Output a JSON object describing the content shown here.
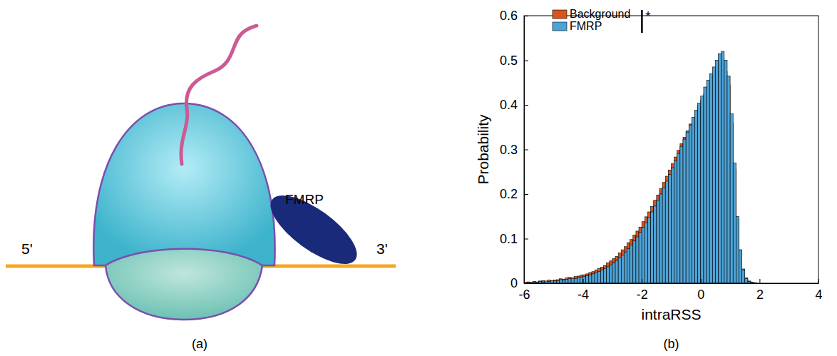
{
  "panels": [
    "(a)",
    "(b)"
  ],
  "diagram": {
    "five_prime": "5'",
    "three_prime": "3'",
    "protein": "FMRP"
  },
  "chart_data": {
    "type": "histogram",
    "x_label": "intraRSS",
    "y_label": "Probability",
    "xlim": [
      -6,
      4
    ],
    "xticks": [
      -6,
      -4,
      -2,
      0,
      2,
      4
    ],
    "ylim": [
      0,
      0.6
    ],
    "yticks": [
      0,
      0.1,
      0.2,
      0.3,
      0.4,
      0.5,
      0.6
    ],
    "legend": "north-west",
    "significance": "*",
    "bins": [
      -6.0,
      -5.9,
      -5.8,
      -5.7,
      -5.6,
      -5.5,
      -5.4,
      -5.3,
      -5.2,
      -5.1,
      -5.0,
      -4.9,
      -4.8,
      -4.7,
      -4.6,
      -4.5,
      -4.4,
      -4.3,
      -4.2,
      -4.1,
      -4.0,
      -3.9,
      -3.8,
      -3.7,
      -3.6,
      -3.5,
      -3.4,
      -3.3,
      -3.2,
      -3.1,
      -3.0,
      -2.9,
      -2.8,
      -2.7,
      -2.6,
      -2.5,
      -2.4,
      -2.3,
      -2.2,
      -2.1,
      -2.0,
      -1.9,
      -1.8,
      -1.7,
      -1.6,
      -1.5,
      -1.4,
      -1.3,
      -1.2,
      -1.1,
      -1.0,
      -0.9,
      -0.8,
      -0.7,
      -0.6,
      -0.5,
      -0.4,
      -0.3,
      -0.2,
      -0.1,
      0.0,
      0.1,
      0.2,
      0.3,
      0.4,
      0.5,
      0.6,
      0.7,
      0.8,
      0.9,
      1.0,
      1.1,
      1.2,
      1.3,
      1.4,
      1.5,
      1.6,
      1.7,
      1.8,
      1.9,
      2.0
    ],
    "series": [
      {
        "name": "Background",
        "color": "#d9531e",
        "values": [
          0.002,
          0.003,
          0.002,
          0.004,
          0.003,
          0.005,
          0.006,
          0.004,
          0.007,
          0.006,
          0.007,
          0.008,
          0.01,
          0.009,
          0.012,
          0.013,
          0.012,
          0.015,
          0.016,
          0.018,
          0.019,
          0.021,
          0.024,
          0.026,
          0.03,
          0.033,
          0.036,
          0.04,
          0.046,
          0.05,
          0.055,
          0.06,
          0.068,
          0.075,
          0.082,
          0.091,
          0.098,
          0.108,
          0.117,
          0.126,
          0.138,
          0.149,
          0.16,
          0.172,
          0.186,
          0.198,
          0.212,
          0.226,
          0.24,
          0.254,
          0.268,
          0.283,
          0.298,
          0.313,
          0.327,
          0.342,
          0.357,
          0.371,
          0.385,
          0.398,
          0.41,
          0.425,
          0.44,
          0.452,
          0.465,
          0.478,
          0.488,
          0.49,
          0.475,
          0.445,
          0.36,
          0.255,
          0.145,
          0.075,
          0.032,
          0.012,
          0.005,
          0.002,
          0.001,
          0
        ]
      },
      {
        "name": "FMRP",
        "color": "#4ea3d6",
        "values": [
          0,
          0.002,
          0,
          0.003,
          0.002,
          0.004,
          0.003,
          0.005,
          0.004,
          0.006,
          0.005,
          0.006,
          0.008,
          0.007,
          0.009,
          0.01,
          0.011,
          0.01,
          0.013,
          0.014,
          0.015,
          0.017,
          0.019,
          0.021,
          0.024,
          0.026,
          0.03,
          0.033,
          0.037,
          0.041,
          0.046,
          0.051,
          0.057,
          0.063,
          0.07,
          0.078,
          0.086,
          0.095,
          0.104,
          0.114,
          0.125,
          0.136,
          0.148,
          0.16,
          0.173,
          0.186,
          0.2,
          0.214,
          0.229,
          0.244,
          0.259,
          0.275,
          0.291,
          0.307,
          0.323,
          0.339,
          0.355,
          0.372,
          0.388,
          0.404,
          0.42,
          0.44,
          0.455,
          0.47,
          0.485,
          0.5,
          0.515,
          0.52,
          0.5,
          0.465,
          0.38,
          0.27,
          0.15,
          0.075,
          0.03,
          0.01,
          0.004,
          0.002,
          0.001,
          0
        ]
      }
    ]
  }
}
